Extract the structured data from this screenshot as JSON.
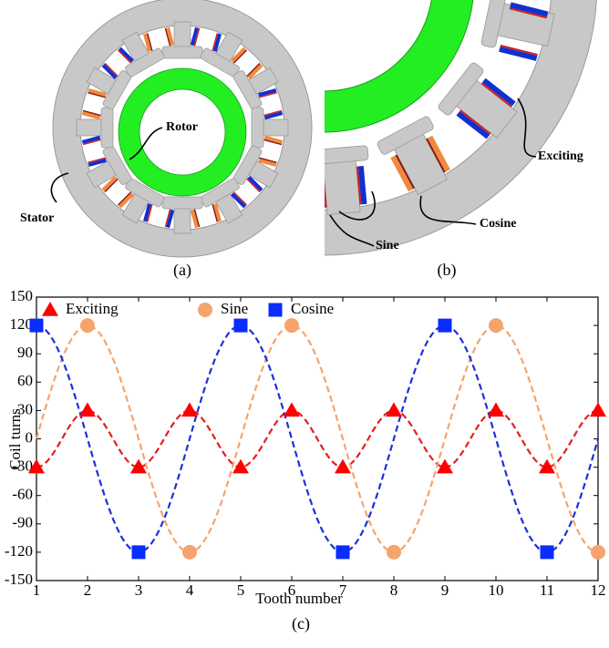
{
  "figure": {
    "panel_a": {
      "rotor_label": "Rotor",
      "stator_label": "Stator",
      "caption": "(a)"
    },
    "panel_b": {
      "exciting_label": "Exciting",
      "cosine_label": "Cosine",
      "sine_label": "Sine",
      "caption": "(b)"
    }
  },
  "chart_data": {
    "type": "line",
    "caption": "(c)",
    "x_label": "Tooth number",
    "y_label": "Coil turns",
    "xlim": [
      1,
      12
    ],
    "ylim": [
      -150,
      150
    ],
    "xticks": [
      1,
      2,
      3,
      4,
      5,
      6,
      7,
      8,
      9,
      10,
      11,
      12
    ],
    "yticks": [
      -150,
      -120,
      -90,
      -60,
      -30,
      0,
      30,
      60,
      90,
      120,
      150
    ],
    "legend": "upper left",
    "series": [
      {
        "name": "Exciting",
        "color": "#ff0000",
        "line_color": "#e02020",
        "marker": "triangle",
        "x": [
          1,
          2,
          3,
          4,
          5,
          6,
          7,
          8,
          9,
          10,
          11,
          12
        ],
        "values": [
          -30,
          30,
          -30,
          30,
          -30,
          30,
          -30,
          30,
          -30,
          30,
          -30,
          30
        ]
      },
      {
        "name": "Sine",
        "color": "#f4a46c",
        "line_color": "#f4a46c",
        "marker": "circle",
        "x": [
          2,
          4,
          6,
          8,
          10,
          12
        ],
        "values": [
          120,
          -120,
          120,
          -120,
          120,
          -120
        ]
      },
      {
        "name": "Cosine",
        "color": "#0a2cff",
        "line_color": "#1f30d8",
        "marker": "square",
        "x": [
          1,
          3,
          5,
          7,
          9,
          11
        ],
        "values": [
          120,
          -120,
          120,
          -120,
          120,
          -120
        ]
      }
    ]
  }
}
